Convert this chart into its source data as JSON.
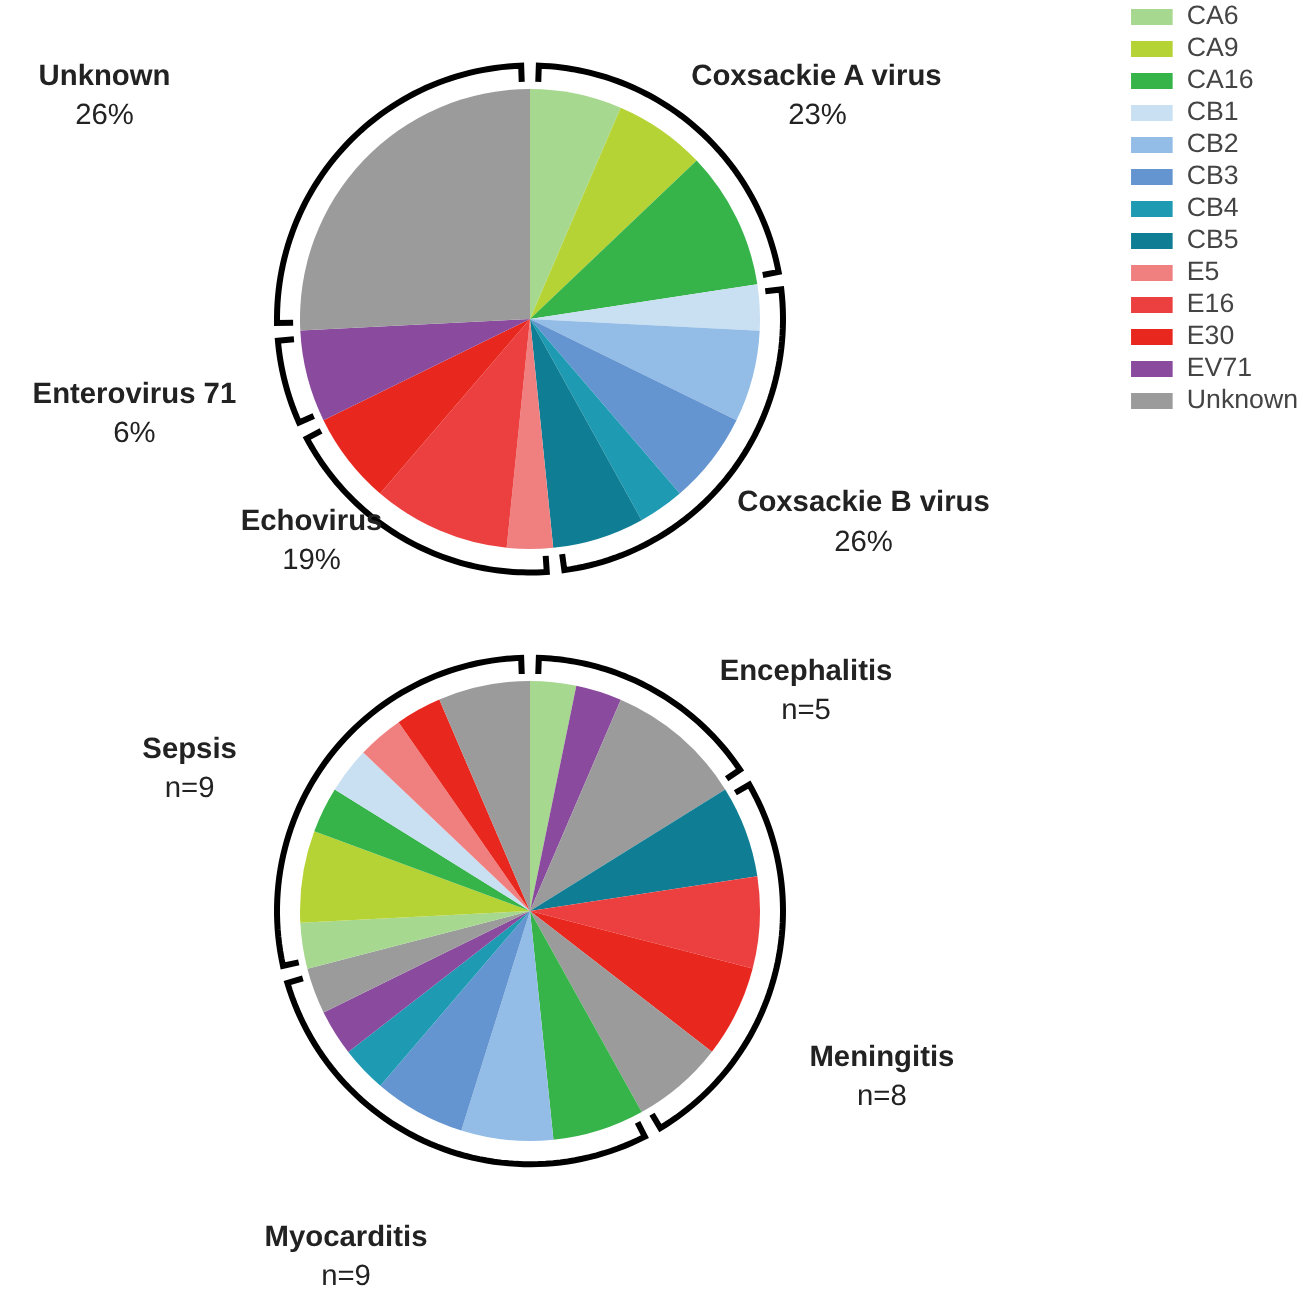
{
  "chart_data": [
    {
      "type": "pie",
      "legend": "right",
      "categories": [
        "CA6",
        "CA9",
        "CA16",
        "CB1",
        "CB2",
        "CB3",
        "CB4",
        "CB5",
        "E5",
        "E16",
        "E30",
        "EV71",
        "Unknown"
      ],
      "values": [
        6.45,
        6.45,
        9.68,
        3.23,
        6.45,
        6.45,
        3.23,
        6.45,
        3.23,
        9.68,
        6.45,
        6.45,
        25.8
      ],
      "colors": [
        "#a6d88f",
        "#b5d334",
        "#36b44a",
        "#c9dff2",
        "#93bde6",
        "#6495d0",
        "#1e9bb3",
        "#0f7e95",
        "#f08080",
        "#ec4040",
        "#e8281e",
        "#8a4a9e",
        "#9b9b9b"
      ],
      "annotations": [
        "Coxsackie A virus\n23%",
        "Coxsackie B virus\n26%",
        "Echovirus\n19%",
        "Enterovirus 71\n6%",
        "Unknown\n26%"
      ]
    },
    {
      "type": "pie",
      "categories": [
        null,
        null,
        null,
        null,
        null,
        null,
        null,
        null,
        null,
        null,
        null,
        null,
        null,
        null,
        null,
        null,
        null,
        null,
        null,
        null
      ],
      "values": [
        3.23,
        3.23,
        9.68,
        6.45,
        6.45,
        6.45,
        6.45,
        6.45,
        6.45,
        6.45,
        3.23,
        3.23,
        3.23,
        3.23,
        6.45,
        3.23,
        3.23,
        3.23,
        3.23,
        6.45
      ],
      "colors": [
        "#a6d88f",
        "#8a4a9e",
        "#9b9b9b",
        "#0f7e95",
        "#ec4040",
        "#e8281e",
        "#9b9b9b",
        "#36b44a",
        "#93bde6",
        "#6495d0",
        "#1e9bb3",
        "#8a4a9e",
        "#9b9b9b",
        "#a6d88f",
        "#b5d334",
        "#36b44a",
        "#c9dff2",
        "#f08080",
        "#e8281e",
        "#9b9b9b"
      ],
      "annotations": [
        "Encephalitis\nn=5",
        "Meningitis\nn=8",
        "Myocarditis\nn=9",
        "Sepsis\nn=9"
      ]
    }
  ]
}
